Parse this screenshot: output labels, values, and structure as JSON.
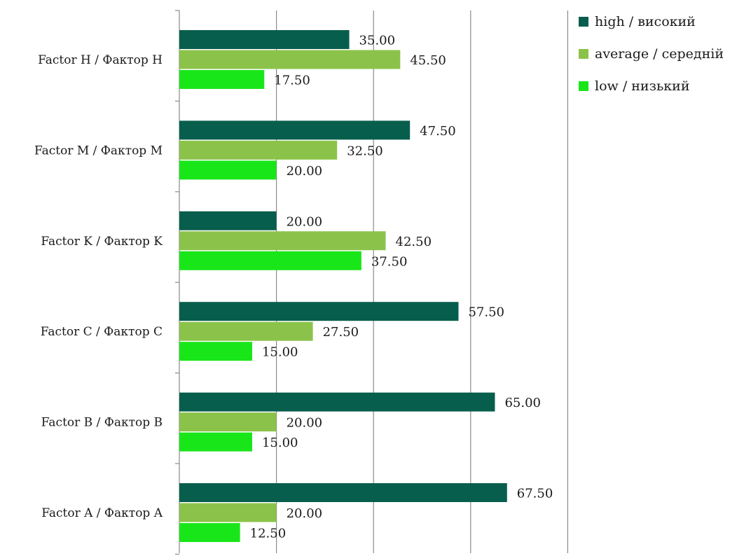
{
  "chart_data": {
    "type": "bar",
    "orientation": "horizontal",
    "categories": [
      "Factor H / Фактор H",
      "Factor M / Фактор M",
      "Factor K / Фактор K",
      "Factor C / Фактор C",
      "Factor B / Фактор B",
      "Factor A / Фактор A"
    ],
    "series": [
      {
        "name": "high /  високий",
        "color": "#075e4c",
        "values": [
          35.0,
          47.5,
          20.0,
          57.5,
          65.0,
          67.5
        ],
        "labels": [
          "35.00",
          "47.50",
          "20.00",
          "57.50",
          "65.00",
          "67.50"
        ]
      },
      {
        "name": "average / середній",
        "color": "#8bc34a",
        "values": [
          45.5,
          32.5,
          42.5,
          27.5,
          20.0,
          20.0
        ],
        "labels": [
          "45.50",
          "32.50",
          "42.50",
          "27.50",
          "20.00",
          "20.00"
        ]
      },
      {
        "name": "low / низький",
        "color": "#19e619",
        "values": [
          17.5,
          20.0,
          37.5,
          15.0,
          15.0,
          12.5
        ],
        "labels": [
          "17.50",
          "20.00",
          "37.50",
          "15.00",
          "15.00",
          "12.50"
        ]
      }
    ],
    "xlim": [
      0,
      80
    ],
    "x_gridlines": [
      20,
      40,
      60,
      80
    ],
    "grid": true,
    "legend_position": "top-right",
    "title": "",
    "xlabel": "",
    "ylabel": ""
  }
}
